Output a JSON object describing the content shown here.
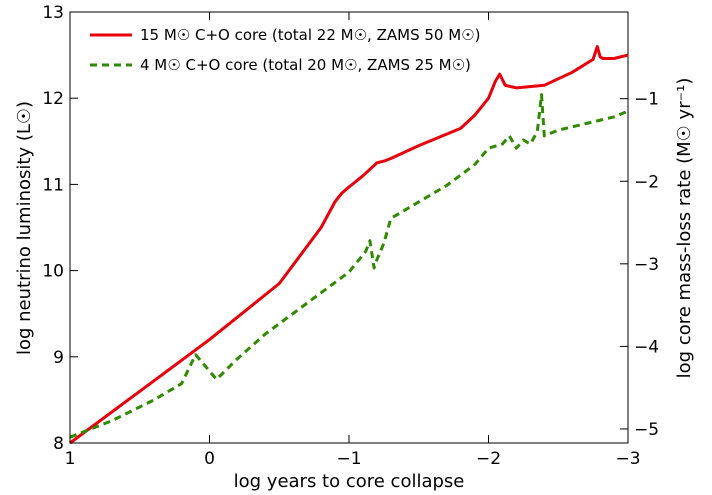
{
  "chart_data": {
    "type": "line",
    "xlabel": "log years to core collapse",
    "ylabel_left": "log neutrino luminosity (L☉)",
    "ylabel_right": "log core mass-loss rate (M☉ yr⁻¹)",
    "xlim": [
      1,
      -3
    ],
    "ylim_left": [
      8,
      13
    ],
    "ylim_right": [
      -5.17,
      0.05
    ],
    "x_ticks": [
      1,
      0,
      -1,
      -2,
      -3
    ],
    "x_tick_labels": [
      "1",
      "0",
      "−1",
      "−2",
      "−3"
    ],
    "y_left_ticks": [
      8,
      9,
      10,
      11,
      12,
      13
    ],
    "y_left_tick_labels": [
      "8",
      "9",
      "10",
      "11",
      "12",
      "13"
    ],
    "y_right_ticks": [
      -5,
      -4,
      -3,
      -2,
      -1
    ],
    "y_right_tick_labels": [
      "−5",
      "−4",
      "−3",
      "−2",
      "−1"
    ],
    "grid": false,
    "legend_position": "top-left",
    "series": [
      {
        "name": "15 M☉ C+O core (total 22 M☉, ZAMS 50 M☉)",
        "axis": "left",
        "color": "#e8000b",
        "style": "solid",
        "x": [
          1,
          0.5,
          0,
          -0.5,
          -0.8,
          -0.9,
          -0.95,
          -1.0,
          -1.1,
          -1.2,
          -1.25,
          -1.3,
          -1.5,
          -1.8,
          -1.9,
          -2.0,
          -2.05,
          -2.08,
          -2.12,
          -2.2,
          -2.4,
          -2.6,
          -2.75,
          -2.78,
          -2.8,
          -2.82,
          -2.9,
          -3.0
        ],
        "y": [
          8.0,
          8.6,
          9.2,
          9.85,
          10.5,
          10.8,
          10.9,
          10.97,
          11.1,
          11.25,
          11.27,
          11.3,
          11.45,
          11.65,
          11.8,
          12.0,
          12.2,
          12.28,
          12.15,
          12.12,
          12.15,
          12.3,
          12.45,
          12.6,
          12.48,
          12.46,
          12.46,
          12.5
        ]
      },
      {
        "name": "4 M☉ C+O core (total 20 M☉, ZAMS 25 M☉)",
        "axis": "right",
        "color": "#2e8b00",
        "style": "dashed",
        "x": [
          1,
          0.7,
          0.4,
          0.2,
          0.1,
          -0.05,
          -0.2,
          -0.4,
          -0.6,
          -0.8,
          -1.0,
          -1.12,
          -1.15,
          -1.18,
          -1.2,
          -1.25,
          -1.3,
          -1.5,
          -1.7,
          -1.9,
          -2.0,
          -2.1,
          -2.15,
          -2.2,
          -2.25,
          -2.3,
          -2.35,
          -2.38,
          -2.4,
          -2.5,
          -2.7,
          -2.9,
          -3.0
        ],
        "y": [
          -5.1,
          -4.9,
          -4.65,
          -4.45,
          -4.1,
          -4.4,
          -4.15,
          -3.85,
          -3.6,
          -3.35,
          -3.1,
          -2.85,
          -2.72,
          -3.05,
          -2.95,
          -2.75,
          -2.45,
          -2.25,
          -2.05,
          -1.8,
          -1.6,
          -1.55,
          -1.45,
          -1.6,
          -1.5,
          -1.55,
          -1.4,
          -0.95,
          -1.45,
          -1.38,
          -1.3,
          -1.22,
          -1.15
        ]
      }
    ]
  }
}
